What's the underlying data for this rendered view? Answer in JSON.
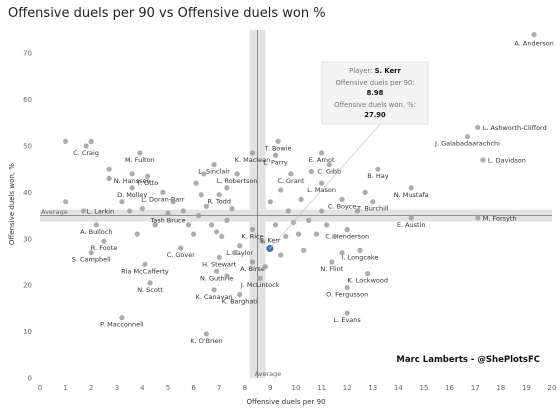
{
  "chart_data": {
    "type": "scatter",
    "title": "Offensive duels per 90 vs Offensive duels won %",
    "xlabel": "Offensive duels per 90",
    "ylabel": "Offensive duels won, %",
    "xlim": [
      0,
      20
    ],
    "ylim": [
      0,
      75
    ],
    "xticks": [
      "0",
      "1",
      "2",
      "3",
      "4",
      "5",
      "6",
      "7",
      "8",
      "9",
      "10",
      "11",
      "12",
      "13",
      "14",
      "15",
      "16",
      "17",
      "18",
      "19",
      "20"
    ],
    "yticks": [
      "0",
      "10",
      "20",
      "30",
      "40",
      "50",
      "60",
      "70"
    ],
    "grid": false,
    "average": {
      "x": 8.5,
      "y": 35.0,
      "x_label": "Average",
      "y_label": "Average"
    },
    "credit": "Marc Lamberts - @ShePlotsFC",
    "highlight": {
      "name": "S. Kerr",
      "x": 8.98,
      "y": 27.9,
      "color": "#4a78b5",
      "tooltip": {
        "player_label": "Player:",
        "player_value": "S. Kerr",
        "x_label": "Offensive duels per 90:",
        "x_value": "8.98",
        "y_label": "Offensive duels won, %:",
        "y_value": "27.90"
      }
    },
    "points": [
      {
        "name": "A. Anderson",
        "x": 19.3,
        "y": 74.0,
        "labeled": true
      },
      {
        "name": "L. Ashworth-Clifford",
        "x": 17.1,
        "y": 54.0,
        "labeled": true
      },
      {
        "name": "J. Galabadaarachchi",
        "x": 16.7,
        "y": 52.0,
        "labeled": true
      },
      {
        "name": "L. Davidson",
        "x": 17.3,
        "y": 47.0,
        "labeled": true
      },
      {
        "name": "N. Mustafa",
        "x": 14.5,
        "y": 41.0,
        "labeled": true
      },
      {
        "name": "M. Forsyth",
        "x": 17.1,
        "y": 34.5,
        "labeled": true
      },
      {
        "name": "E. Austin",
        "x": 14.5,
        "y": 34.5,
        "labeled": true
      },
      {
        "name": "B. Hay",
        "x": 13.2,
        "y": 45.0,
        "labeled": true
      },
      {
        "name": "T. Burchill",
        "x": 13.0,
        "y": 38.0,
        "labeled": true
      },
      {
        "name": "C. Henderson",
        "x": 12.0,
        "y": 32.0,
        "labeled": true
      },
      {
        "name": "I. Longcake",
        "x": 12.5,
        "y": 27.5,
        "labeled": true
      },
      {
        "name": "K. Lockwood",
        "x": 12.8,
        "y": 22.5,
        "labeled": true
      },
      {
        "name": "L. Evans",
        "x": 12.0,
        "y": 14.0,
        "labeled": true
      },
      {
        "name": "O. Fergusson",
        "x": 12.0,
        "y": 19.5,
        "labeled": true
      },
      {
        "name": "N. Flint",
        "x": 11.4,
        "y": 25.0,
        "labeled": true
      },
      {
        "name": "C. Boyce",
        "x": 11.8,
        "y": 38.5,
        "labeled": true
      },
      {
        "name": "L. Mason",
        "x": 11.0,
        "y": 42.0,
        "labeled": true
      },
      {
        "name": "C. Gibb",
        "x": 11.3,
        "y": 46.0,
        "labeled": true
      },
      {
        "name": "E. Arnot",
        "x": 11.0,
        "y": 48.5,
        "labeled": true
      },
      {
        "name": "C. Grant",
        "x": 9.8,
        "y": 44.0,
        "labeled": true
      },
      {
        "name": "T. Bowie",
        "x": 9.3,
        "y": 51.0,
        "labeled": true
      },
      {
        "name": "L. Parry",
        "x": 9.2,
        "y": 48.0,
        "labeled": true
      },
      {
        "name": "K. Maclean",
        "x": 8.3,
        "y": 48.5,
        "labeled": true
      },
      {
        "name": "L. Robertson",
        "x": 7.7,
        "y": 44.0,
        "labeled": true
      },
      {
        "name": "L. Sinclair",
        "x": 6.8,
        "y": 46.0,
        "labeled": true
      },
      {
        "name": "R. Todd",
        "x": 7.0,
        "y": 39.5,
        "labeled": true
      },
      {
        "name": "K. Rice",
        "x": 8.3,
        "y": 32.0,
        "labeled": true
      },
      {
        "name": "A. Birse",
        "x": 8.3,
        "y": 25.0,
        "labeled": true
      },
      {
        "name": "L. Taylor",
        "x": 7.8,
        "y": 28.5,
        "labeled": true
      },
      {
        "name": "H. Stewart",
        "x": 7.0,
        "y": 26.0,
        "labeled": true
      },
      {
        "name": "J. McLintock",
        "x": 8.6,
        "y": 21.5,
        "labeled": true
      },
      {
        "name": "N. Guthrie",
        "x": 6.9,
        "y": 23.0,
        "labeled": true
      },
      {
        "name": "K. Canavan",
        "x": 6.8,
        "y": 19.0,
        "labeled": true
      },
      {
        "name": "K. Barghati",
        "x": 7.8,
        "y": 18.0,
        "labeled": true
      },
      {
        "name": "K. O'Brien",
        "x": 6.5,
        "y": 9.5,
        "labeled": true
      },
      {
        "name": "C. Gover",
        "x": 5.5,
        "y": 28.0,
        "labeled": true
      },
      {
        "name": "Tash Bruce",
        "x": 5.0,
        "y": 35.5,
        "labeled": true
      },
      {
        "name": "L. Doran-Barr",
        "x": 4.8,
        "y": 40.0,
        "labeled": true
      },
      {
        "name": "T. Otto",
        "x": 4.2,
        "y": 43.5,
        "labeled": true
      },
      {
        "name": "D. Molley",
        "x": 3.6,
        "y": 41.0,
        "labeled": true
      },
      {
        "name": "N. Hanssen",
        "x": 3.6,
        "y": 44.0,
        "labeled": true
      },
      {
        "name": "M. Fulton",
        "x": 3.9,
        "y": 48.5,
        "labeled": true
      },
      {
        "name": "C. Craig",
        "x": 1.8,
        "y": 50.0,
        "labeled": true
      },
      {
        "name": "Ria McCafferty",
        "x": 4.1,
        "y": 24.5,
        "labeled": true
      },
      {
        "name": "N. Scott",
        "x": 4.3,
        "y": 20.5,
        "labeled": true
      },
      {
        "name": "A. Bulloch",
        "x": 2.2,
        "y": 33.0,
        "labeled": true
      },
      {
        "name": "R. Foote",
        "x": 2.5,
        "y": 29.5,
        "labeled": true
      },
      {
        "name": "S. Campbell",
        "x": 2.0,
        "y": 27.0,
        "labeled": true
      },
      {
        "name": "P. Macconnell",
        "x": 3.2,
        "y": 13.0,
        "labeled": true
      },
      {
        "name": "L. Larkin",
        "x": 1.7,
        "y": 36.0,
        "labeled": true
      },
      {
        "name": "",
        "x": 1.0,
        "y": 51.0,
        "labeled": false
      },
      {
        "name": "",
        "x": 2.0,
        "y": 51.0,
        "labeled": false
      },
      {
        "name": "",
        "x": 1.0,
        "y": 38.0,
        "labeled": false
      },
      {
        "name": "",
        "x": 2.7,
        "y": 45.0,
        "labeled": false
      },
      {
        "name": "",
        "x": 2.7,
        "y": 43.0,
        "labeled": false
      },
      {
        "name": "",
        "x": 3.2,
        "y": 38.0,
        "labeled": false
      },
      {
        "name": "",
        "x": 3.5,
        "y": 36.0,
        "labeled": false
      },
      {
        "name": "",
        "x": 4.0,
        "y": 36.5,
        "labeled": false
      },
      {
        "name": "",
        "x": 3.8,
        "y": 31.0,
        "labeled": false
      },
      {
        "name": "",
        "x": 4.5,
        "y": 33.0,
        "labeled": false
      },
      {
        "name": "",
        "x": 5.2,
        "y": 38.0,
        "labeled": false
      },
      {
        "name": "",
        "x": 5.6,
        "y": 36.0,
        "labeled": false
      },
      {
        "name": "",
        "x": 5.8,
        "y": 33.0,
        "labeled": false
      },
      {
        "name": "",
        "x": 6.0,
        "y": 31.0,
        "labeled": false
      },
      {
        "name": "",
        "x": 6.2,
        "y": 35.0,
        "labeled": false
      },
      {
        "name": "",
        "x": 6.3,
        "y": 39.5,
        "labeled": false
      },
      {
        "name": "",
        "x": 6.5,
        "y": 37.0,
        "labeled": false
      },
      {
        "name": "",
        "x": 6.7,
        "y": 33.0,
        "labeled": false
      },
      {
        "name": "",
        "x": 6.9,
        "y": 31.5,
        "labeled": false
      },
      {
        "name": "",
        "x": 7.1,
        "y": 30.5,
        "labeled": false
      },
      {
        "name": "",
        "x": 7.3,
        "y": 34.0,
        "labeled": false
      },
      {
        "name": "",
        "x": 7.5,
        "y": 36.5,
        "labeled": false
      },
      {
        "name": "",
        "x": 7.6,
        "y": 27.0,
        "labeled": false
      },
      {
        "name": "",
        "x": 6.1,
        "y": 42.0,
        "labeled": false
      },
      {
        "name": "",
        "x": 6.4,
        "y": 44.0,
        "labeled": false
      },
      {
        "name": "",
        "x": 7.3,
        "y": 41.0,
        "labeled": false
      },
      {
        "name": "",
        "x": 7.3,
        "y": 22.0,
        "labeled": false
      },
      {
        "name": "",
        "x": 8.8,
        "y": 24.0,
        "labeled": false
      },
      {
        "name": "",
        "x": 9.0,
        "y": 38.0,
        "labeled": false
      },
      {
        "name": "",
        "x": 9.2,
        "y": 33.0,
        "labeled": false
      },
      {
        "name": "",
        "x": 9.4,
        "y": 40.5,
        "labeled": false
      },
      {
        "name": "",
        "x": 9.6,
        "y": 30.5,
        "labeled": false
      },
      {
        "name": "",
        "x": 9.7,
        "y": 36.0,
        "labeled": false
      },
      {
        "name": "",
        "x": 9.9,
        "y": 33.5,
        "labeled": false
      },
      {
        "name": "",
        "x": 10.1,
        "y": 31.0,
        "labeled": false
      },
      {
        "name": "",
        "x": 10.2,
        "y": 38.5,
        "labeled": false
      },
      {
        "name": "",
        "x": 10.3,
        "y": 27.5,
        "labeled": false
      },
      {
        "name": "",
        "x": 10.5,
        "y": 34.0,
        "labeled": false
      },
      {
        "name": "",
        "x": 10.6,
        "y": 44.5,
        "labeled": false
      },
      {
        "name": "",
        "x": 10.8,
        "y": 31.0,
        "labeled": false
      },
      {
        "name": "",
        "x": 11.0,
        "y": 36.0,
        "labeled": false
      },
      {
        "name": "",
        "x": 11.2,
        "y": 33.0,
        "labeled": false
      },
      {
        "name": "",
        "x": 11.5,
        "y": 30.5,
        "labeled": false
      },
      {
        "name": "",
        "x": 9.4,
        "y": 26.5,
        "labeled": false
      },
      {
        "name": "",
        "x": 8.7,
        "y": 29.5,
        "labeled": false
      },
      {
        "name": "",
        "x": 12.4,
        "y": 36.0,
        "labeled": false
      },
      {
        "name": "",
        "x": 12.7,
        "y": 40.0,
        "labeled": false
      },
      {
        "name": "",
        "x": 11.8,
        "y": 27.0,
        "labeled": false
      }
    ]
  }
}
